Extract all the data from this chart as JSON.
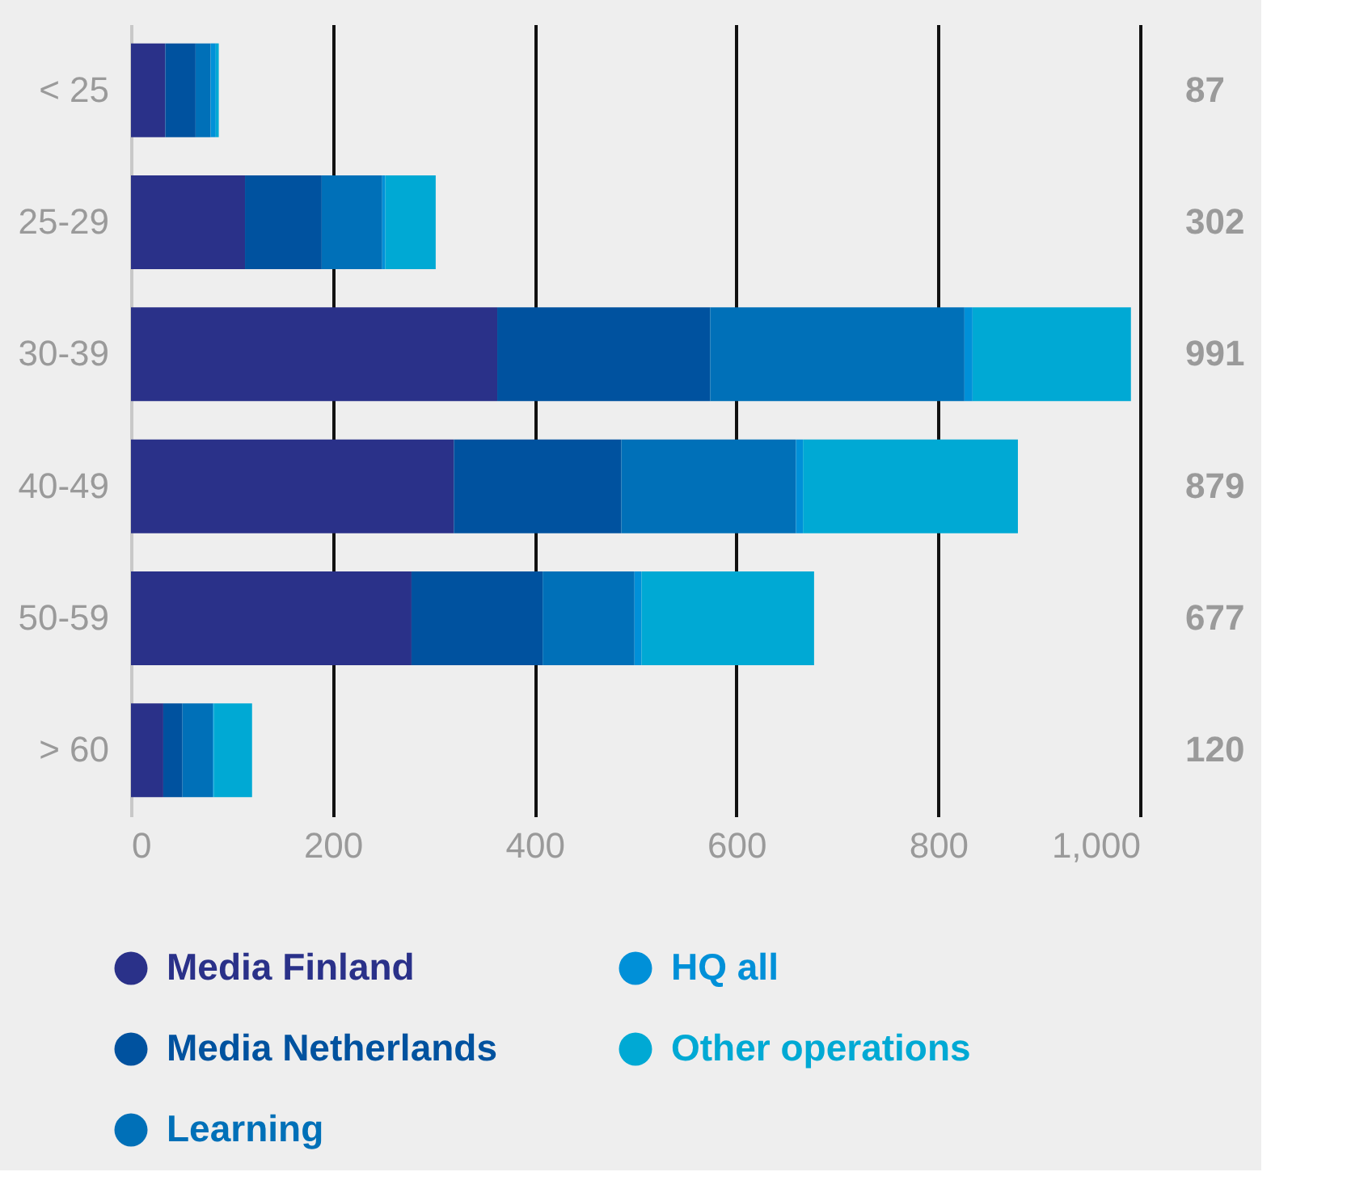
{
  "chart_data": {
    "type": "bar",
    "orientation": "horizontal",
    "stacked": true,
    "categories": [
      "< 25",
      "25-29",
      "30-39",
      "40-49",
      "50-59",
      "> 60"
    ],
    "series": [
      {
        "name": "Media Finland",
        "color": "#2a3189",
        "values": [
          34,
          113,
          363,
          320,
          278,
          32
        ]
      },
      {
        "name": "Media Netherlands",
        "color": "#00529f",
        "values": [
          30,
          76,
          211,
          166,
          130,
          19
        ]
      },
      {
        "name": "Learning",
        "color": "#0070b8",
        "values": [
          15,
          60,
          252,
          173,
          91,
          30
        ]
      },
      {
        "name": "HQ all",
        "color": "#0090d8",
        "values": [
          5,
          3,
          8,
          7,
          7,
          1
        ]
      },
      {
        "name": "Other operations",
        "color": "#00a9d4",
        "values": [
          3,
          50,
          157,
          213,
          171,
          38
        ]
      }
    ],
    "annotations": [
      "87",
      "302",
      "991",
      "879",
      "677",
      "120"
    ],
    "xlim": [
      0,
      1000
    ],
    "xticks": [
      0,
      200,
      400,
      600,
      800,
      {
        "value": 1000,
        "label": "1,000"
      }
    ],
    "grid": "x",
    "legend": "bottom"
  }
}
